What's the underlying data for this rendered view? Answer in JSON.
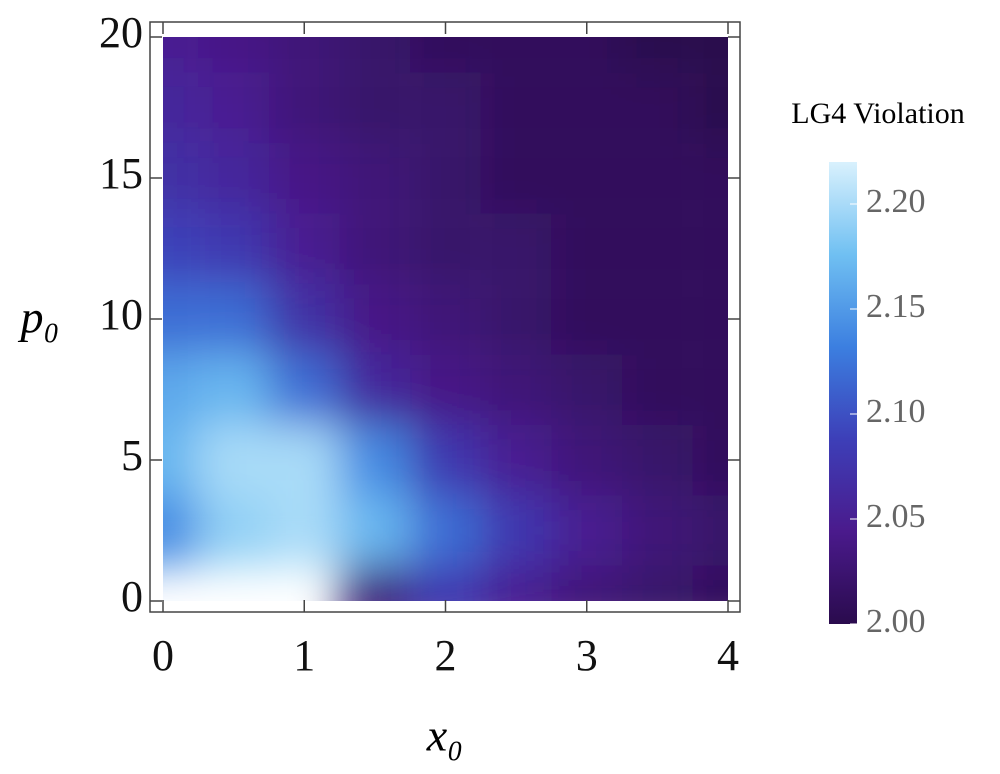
{
  "chart_data": {
    "type": "density",
    "x_label": "x₀",
    "y_label": "p₀",
    "x": [
      0,
      0.5,
      1,
      1.5,
      2,
      2.5,
      3,
      3.5,
      4
    ],
    "y": [
      0,
      2.5,
      5,
      7.5,
      10,
      12.5,
      15,
      17.5,
      20
    ],
    "z": [
      [
        null,
        null,
        null,
        2.03,
        2.08,
        2.05,
        2.03,
        2.02,
        2.01
      ],
      [
        2.14,
        2.19,
        2.2,
        2.17,
        2.12,
        2.08,
        2.05,
        2.03,
        2.02
      ],
      [
        2.17,
        2.2,
        2.2,
        2.14,
        2.08,
        2.05,
        2.03,
        2.02,
        2.01
      ],
      [
        2.16,
        2.17,
        2.12,
        2.06,
        2.04,
        2.03,
        2.02,
        2.01,
        2.01
      ],
      [
        2.12,
        2.12,
        2.07,
        2.04,
        2.03,
        2.02,
        2.01,
        2.01,
        2.01
      ],
      [
        2.09,
        2.08,
        2.05,
        2.03,
        2.02,
        2.02,
        2.01,
        2.01,
        2.01
      ],
      [
        2.07,
        2.06,
        2.04,
        2.03,
        2.02,
        2.01,
        2.01,
        2.01,
        2.01
      ],
      [
        2.06,
        2.05,
        2.03,
        2.02,
        2.02,
        2.01,
        2.01,
        2.01,
        2
      ],
      [
        2.05,
        2.04,
        2.03,
        2.02,
        2.01,
        2.01,
        2.01,
        2,
        2
      ]
    ],
    "xlim": [
      0,
      4
    ],
    "ylim": [
      0,
      20
    ],
    "xticks": [
      0,
      1,
      2,
      3,
      4
    ],
    "yticks": [
      0,
      5,
      10,
      15,
      20
    ],
    "colorbar": {
      "title": "LG4 Violation",
      "zlim": [
        2,
        2.22
      ],
      "ticks": [
        {
          "value": 2,
          "label": "2.00"
        },
        2.05,
        {
          "value": 2.1,
          "label": "2.10"
        },
        2.15,
        {
          "value": 2.2,
          "label": "2.20"
        }
      ],
      "colors": [
        "#2a0b4d",
        "#4a1a8c",
        "#3d3fb8",
        "#3c7fe0",
        "#70c0f2",
        "#d9f1fd"
      ]
    }
  }
}
